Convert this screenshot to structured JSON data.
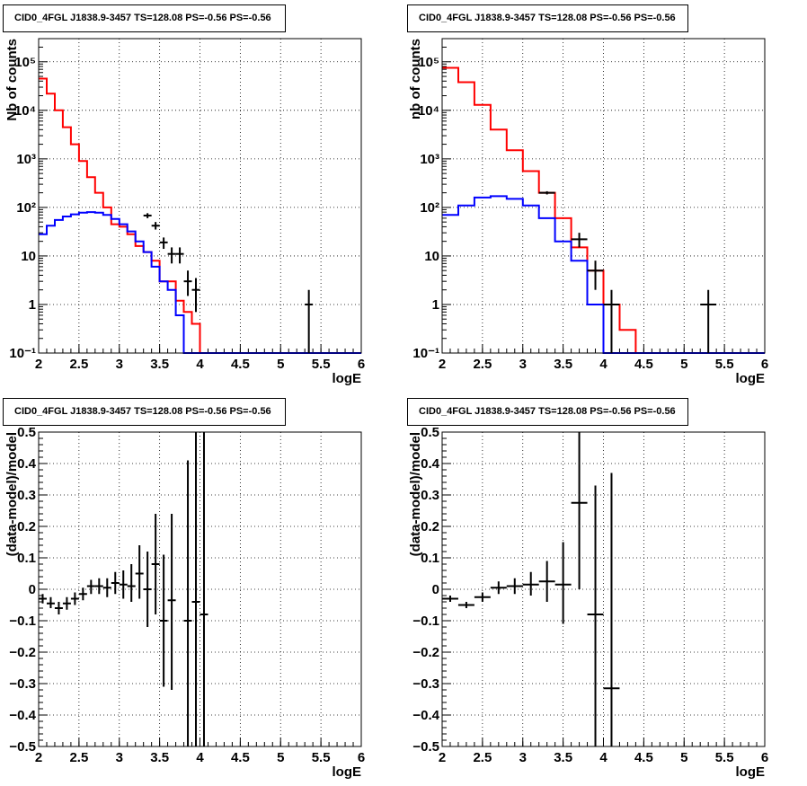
{
  "chart_data": [
    {
      "type": "line",
      "title": "CID0_4FGL J1838.9-3457 TS=128.08 PS=-0.56 PS=-0.56",
      "xlabel": "logE",
      "ylabel": "Nb of counts",
      "yscale": "log",
      "xlim": [
        2,
        6
      ],
      "ylim": [
        0.1,
        300000
      ],
      "grid": true,
      "x_tick_labels": [
        "2",
        "2.5",
        "3",
        "3.5",
        "4",
        "4.5",
        "5",
        "5.5",
        "6"
      ],
      "y_tick_labels": [
        {
          "value": 0.1,
          "label": "10⁻¹"
        },
        {
          "value": 1,
          "label": "1"
        },
        {
          "value": 10,
          "label": "10"
        },
        {
          "value": 100,
          "label": "10²"
        },
        {
          "value": 1000,
          "label": "10³"
        },
        {
          "value": 10000,
          "label": "10⁴"
        },
        {
          "value": 100000,
          "label": "10⁵"
        }
      ],
      "bin_edges": [
        2,
        2.1,
        2.2,
        2.3,
        2.4,
        2.5,
        2.6,
        2.7,
        2.8,
        2.9,
        3,
        3.1,
        3.2,
        3.3,
        3.4,
        3.5,
        3.6,
        3.7,
        3.8,
        3.9,
        4,
        4.1,
        4.2,
        4.3,
        4.4,
        4.5,
        4.6,
        4.7,
        4.8,
        4.9,
        5,
        5.1,
        5.2,
        5.3,
        5.4,
        5.5,
        5.6,
        5.7,
        5.8,
        5.9,
        6
      ],
      "series": [
        {
          "color": "#ff0000",
          "style": "step",
          "values": [
            45000,
            22000,
            10000,
            4500,
            2000,
            900,
            420,
            200,
            100,
            45,
            40,
            28,
            16,
            12,
            8,
            3,
            3,
            1.2,
            0.7,
            0.4,
            0.1,
            0.1,
            0.1,
            0.1,
            0.1,
            0.1,
            0.1,
            0.1,
            0.1,
            0.1,
            0.1,
            0.1,
            0.1,
            0.1,
            0.1,
            0.1,
            0.1,
            0.1,
            0.1,
            0.1
          ]
        },
        {
          "color": "#0000ff",
          "style": "step",
          "values": [
            28,
            42,
            55,
            65,
            72,
            78,
            80,
            78,
            70,
            58,
            45,
            32,
            20,
            12,
            6,
            3,
            2,
            0.6,
            0.1,
            0.1,
            0.1,
            0.1,
            0.1,
            0.1,
            0.1,
            0.1,
            0.1,
            0.1,
            0.1,
            0.1,
            0.1,
            0.1,
            0.1,
            0.1,
            0.1,
            0.1,
            0.1,
            0.1,
            0.1,
            0.1
          ]
        },
        {
          "color": "#000000",
          "style": "errorbar",
          "points": [
            {
              "x": 3.35,
              "y": 68,
              "xerr": 0.05,
              "ylo": 60,
              "yhi": 76
            },
            {
              "x": 3.45,
              "y": 42,
              "xerr": 0.05,
              "ylo": 35,
              "yhi": 50
            },
            {
              "x": 3.55,
              "y": 19,
              "xerr": 0.05,
              "ylo": 14,
              "yhi": 24
            },
            {
              "x": 3.65,
              "y": 11,
              "xerr": 0.05,
              "ylo": 7,
              "yhi": 15
            },
            {
              "x": 3.75,
              "y": 11,
              "xerr": 0.05,
              "ylo": 7,
              "yhi": 15
            },
            {
              "x": 3.85,
              "y": 3,
              "xerr": 0.05,
              "ylo": 1.5,
              "yhi": 5
            },
            {
              "x": 3.95,
              "y": 2,
              "xerr": 0.05,
              "ylo": 0.7,
              "yhi": 3.5
            },
            {
              "x": 5.35,
              "y": 1,
              "xerr": 0.05,
              "ylo": 0.1,
              "yhi": 2
            }
          ]
        }
      ]
    },
    {
      "type": "line",
      "title": "CID0_4FGL J1838.9-3457 TS=128.08 PS=-0.56 PS=-0.56",
      "xlabel": "logE",
      "ylabel": "nb of counts",
      "yscale": "log",
      "xlim": [
        2,
        6
      ],
      "ylim": [
        0.1,
        300000
      ],
      "grid": true,
      "x_tick_labels": [
        "2",
        "2.5",
        "3",
        "3.5",
        "4",
        "4.5",
        "5",
        "5.5",
        "6"
      ],
      "y_tick_labels": [
        {
          "value": 0.1,
          "label": "10⁻¹"
        },
        {
          "value": 1,
          "label": "1"
        },
        {
          "value": 10,
          "label": "10"
        },
        {
          "value": 100,
          "label": "10²"
        },
        {
          "value": 1000,
          "label": "10³"
        },
        {
          "value": 10000,
          "label": "10⁴"
        },
        {
          "value": 100000,
          "label": "10⁵"
        }
      ],
      "bin_edges": [
        2,
        2.2,
        2.4,
        2.6,
        2.8,
        3,
        3.2,
        3.4,
        3.6,
        3.8,
        4,
        4.2,
        4.4,
        4.6,
        4.8,
        5,
        5.2,
        5.4,
        5.6,
        5.8,
        6
      ],
      "series": [
        {
          "color": "#ff0000",
          "style": "step",
          "values": [
            75000,
            38000,
            13000,
            4000,
            1500,
            560,
            200,
            60,
            15,
            5,
            1,
            0.3,
            0.1,
            0.1,
            0.1,
            0.1,
            0.1,
            0.1,
            0.1,
            0.1
          ]
        },
        {
          "color": "#0000ff",
          "style": "step",
          "values": [
            70,
            110,
            160,
            170,
            150,
            110,
            60,
            20,
            8,
            1,
            0.1,
            0.1,
            0.1,
            0.1,
            0.1,
            0.1,
            0.1,
            0.1,
            0.1,
            0.1
          ]
        },
        {
          "color": "#000000",
          "style": "errorbar",
          "points": [
            {
              "x": 3.3,
              "y": 200,
              "xerr": 0.1,
              "ylo": 185,
              "yhi": 215
            },
            {
              "x": 3.7,
              "y": 22,
              "xerr": 0.1,
              "ylo": 15,
              "yhi": 30
            },
            {
              "x": 3.9,
              "y": 5,
              "xerr": 0.1,
              "ylo": 2,
              "yhi": 8
            },
            {
              "x": 4.1,
              "y": 1,
              "xerr": 0.1,
              "ylo": 0.1,
              "yhi": 2
            },
            {
              "x": 5.3,
              "y": 1,
              "xerr": 0.1,
              "ylo": 0.1,
              "yhi": 2
            }
          ]
        }
      ]
    },
    {
      "type": "scatter",
      "title": "CID0_4FGL J1838.9-3457 TS=128.08 PS=-0.56 PS=-0.56",
      "xlabel": "logE",
      "ylabel": "(data-model)/model",
      "yscale": "linear",
      "xlim": [
        2,
        6
      ],
      "ylim": [
        -0.5,
        0.5
      ],
      "grid": true,
      "x_tick_labels": [
        "2",
        "2.5",
        "3",
        "3.5",
        "4",
        "4.5",
        "5",
        "5.5",
        "6"
      ],
      "y_tick_labels": [
        {
          "value": -0.5,
          "label": "−0.5"
        },
        {
          "value": -0.4,
          "label": "−0.4"
        },
        {
          "value": -0.3,
          "label": "−0.3"
        },
        {
          "value": -0.2,
          "label": "−0.2"
        },
        {
          "value": -0.1,
          "label": "−0.1"
        },
        {
          "value": 0,
          "label": "0"
        },
        {
          "value": 0.1,
          "label": "0.1"
        },
        {
          "value": 0.2,
          "label": "0.2"
        },
        {
          "value": 0.3,
          "label": "0.3"
        },
        {
          "value": 0.4,
          "label": "0.4"
        },
        {
          "value": 0.5,
          "label": "0.5"
        }
      ],
      "series": [
        {
          "color": "#000000",
          "style": "errorbar",
          "points": [
            {
              "x": 2.05,
              "y": -0.03,
              "xerr": 0.05,
              "ylo": -0.045,
              "yhi": -0.015
            },
            {
              "x": 2.15,
              "y": -0.045,
              "xerr": 0.05,
              "ylo": -0.06,
              "yhi": -0.025
            },
            {
              "x": 2.25,
              "y": -0.06,
              "xerr": 0.05,
              "ylo": -0.08,
              "yhi": -0.04
            },
            {
              "x": 2.35,
              "y": -0.045,
              "xerr": 0.05,
              "ylo": -0.065,
              "yhi": -0.025
            },
            {
              "x": 2.45,
              "y": -0.03,
              "xerr": 0.05,
              "ylo": -0.05,
              "yhi": -0.01
            },
            {
              "x": 2.55,
              "y": -0.015,
              "xerr": 0.05,
              "ylo": -0.035,
              "yhi": 0.005
            },
            {
              "x": 2.65,
              "y": 0.01,
              "xerr": 0.05,
              "ylo": -0.015,
              "yhi": 0.03
            },
            {
              "x": 2.75,
              "y": 0.01,
              "xerr": 0.05,
              "ylo": -0.015,
              "yhi": 0.035
            },
            {
              "x": 2.85,
              "y": 0.005,
              "xerr": 0.05,
              "ylo": -0.025,
              "yhi": 0.035
            },
            {
              "x": 2.95,
              "y": 0.02,
              "xerr": 0.05,
              "ylo": -0.015,
              "yhi": 0.055
            },
            {
              "x": 3.05,
              "y": 0.015,
              "xerr": 0.05,
              "ylo": -0.03,
              "yhi": 0.06
            },
            {
              "x": 3.15,
              "y": 0.01,
              "xerr": 0.05,
              "ylo": -0.04,
              "yhi": 0.08
            },
            {
              "x": 3.25,
              "y": 0.05,
              "xerr": 0.05,
              "ylo": -0.03,
              "yhi": 0.14
            },
            {
              "x": 3.35,
              "y": 0.0,
              "xerr": 0.05,
              "ylo": -0.12,
              "yhi": 0.12
            },
            {
              "x": 3.45,
              "y": 0.08,
              "xerr": 0.05,
              "ylo": -0.08,
              "yhi": 0.24
            },
            {
              "x": 3.55,
              "y": -0.1,
              "xerr": 0.05,
              "ylo": -0.31,
              "yhi": 0.11
            },
            {
              "x": 3.65,
              "y": -0.035,
              "xerr": 0.05,
              "ylo": -0.32,
              "yhi": 0.24
            },
            {
              "x": 3.85,
              "y": -0.1,
              "xerr": 0.05,
              "ylo": -0.5,
              "yhi": 0.41
            },
            {
              "x": 3.95,
              "y": -0.04,
              "xerr": 0.05,
              "ylo": -0.5,
              "yhi": 0.5
            },
            {
              "x": 4.05,
              "y": -0.08,
              "xerr": 0.05,
              "ylo": -0.5,
              "yhi": 0.5
            }
          ]
        }
      ]
    },
    {
      "type": "scatter",
      "title": "CID0_4FGL J1838.9-3457 TS=128.08 PS=-0.56 PS=-0.56",
      "xlabel": "logE",
      "ylabel": "(data-model)/model",
      "yscale": "linear",
      "xlim": [
        2,
        6
      ],
      "ylim": [
        -0.5,
        0.5
      ],
      "grid": true,
      "x_tick_labels": [
        "2",
        "2.5",
        "3",
        "3.5",
        "4",
        "4.5",
        "5",
        "5.5",
        "6"
      ],
      "y_tick_labels": [
        {
          "value": -0.5,
          "label": "−0.5"
        },
        {
          "value": -0.4,
          "label": "−0.4"
        },
        {
          "value": -0.3,
          "label": "−0.3"
        },
        {
          "value": -0.2,
          "label": "−0.2"
        },
        {
          "value": -0.1,
          "label": "−0.1"
        },
        {
          "value": 0,
          "label": "0"
        },
        {
          "value": 0.1,
          "label": "0.1"
        },
        {
          "value": 0.2,
          "label": "0.2"
        },
        {
          "value": 0.3,
          "label": "0.3"
        },
        {
          "value": 0.4,
          "label": "0.4"
        },
        {
          "value": 0.5,
          "label": "0.5"
        }
      ],
      "series": [
        {
          "color": "#000000",
          "style": "errorbar",
          "points": [
            {
              "x": 2.1,
              "y": -0.03,
              "xerr": 0.1,
              "ylo": -0.04,
              "yhi": -0.02
            },
            {
              "x": 2.3,
              "y": -0.05,
              "xerr": 0.1,
              "ylo": -0.06,
              "yhi": -0.04
            },
            {
              "x": 2.5,
              "y": -0.025,
              "xerr": 0.1,
              "ylo": -0.04,
              "yhi": -0.01
            },
            {
              "x": 2.7,
              "y": 0.005,
              "xerr": 0.1,
              "ylo": -0.015,
              "yhi": 0.025
            },
            {
              "x": 2.9,
              "y": 0.01,
              "xerr": 0.1,
              "ylo": -0.015,
              "yhi": 0.035
            },
            {
              "x": 3.1,
              "y": 0.015,
              "xerr": 0.1,
              "ylo": -0.02,
              "yhi": 0.055
            },
            {
              "x": 3.3,
              "y": 0.025,
              "xerr": 0.1,
              "ylo": -0.04,
              "yhi": 0.09
            },
            {
              "x": 3.5,
              "y": 0.015,
              "xerr": 0.1,
              "ylo": -0.11,
              "yhi": 0.15
            },
            {
              "x": 3.7,
              "y": 0.275,
              "xerr": 0.1,
              "ylo": 0.0,
              "yhi": 0.5
            },
            {
              "x": 3.9,
              "y": -0.08,
              "xerr": 0.1,
              "ylo": -0.5,
              "yhi": 0.33
            },
            {
              "x": 4.1,
              "y": -0.315,
              "xerr": 0.1,
              "ylo": -0.5,
              "yhi": 0.37
            }
          ]
        }
      ]
    }
  ]
}
